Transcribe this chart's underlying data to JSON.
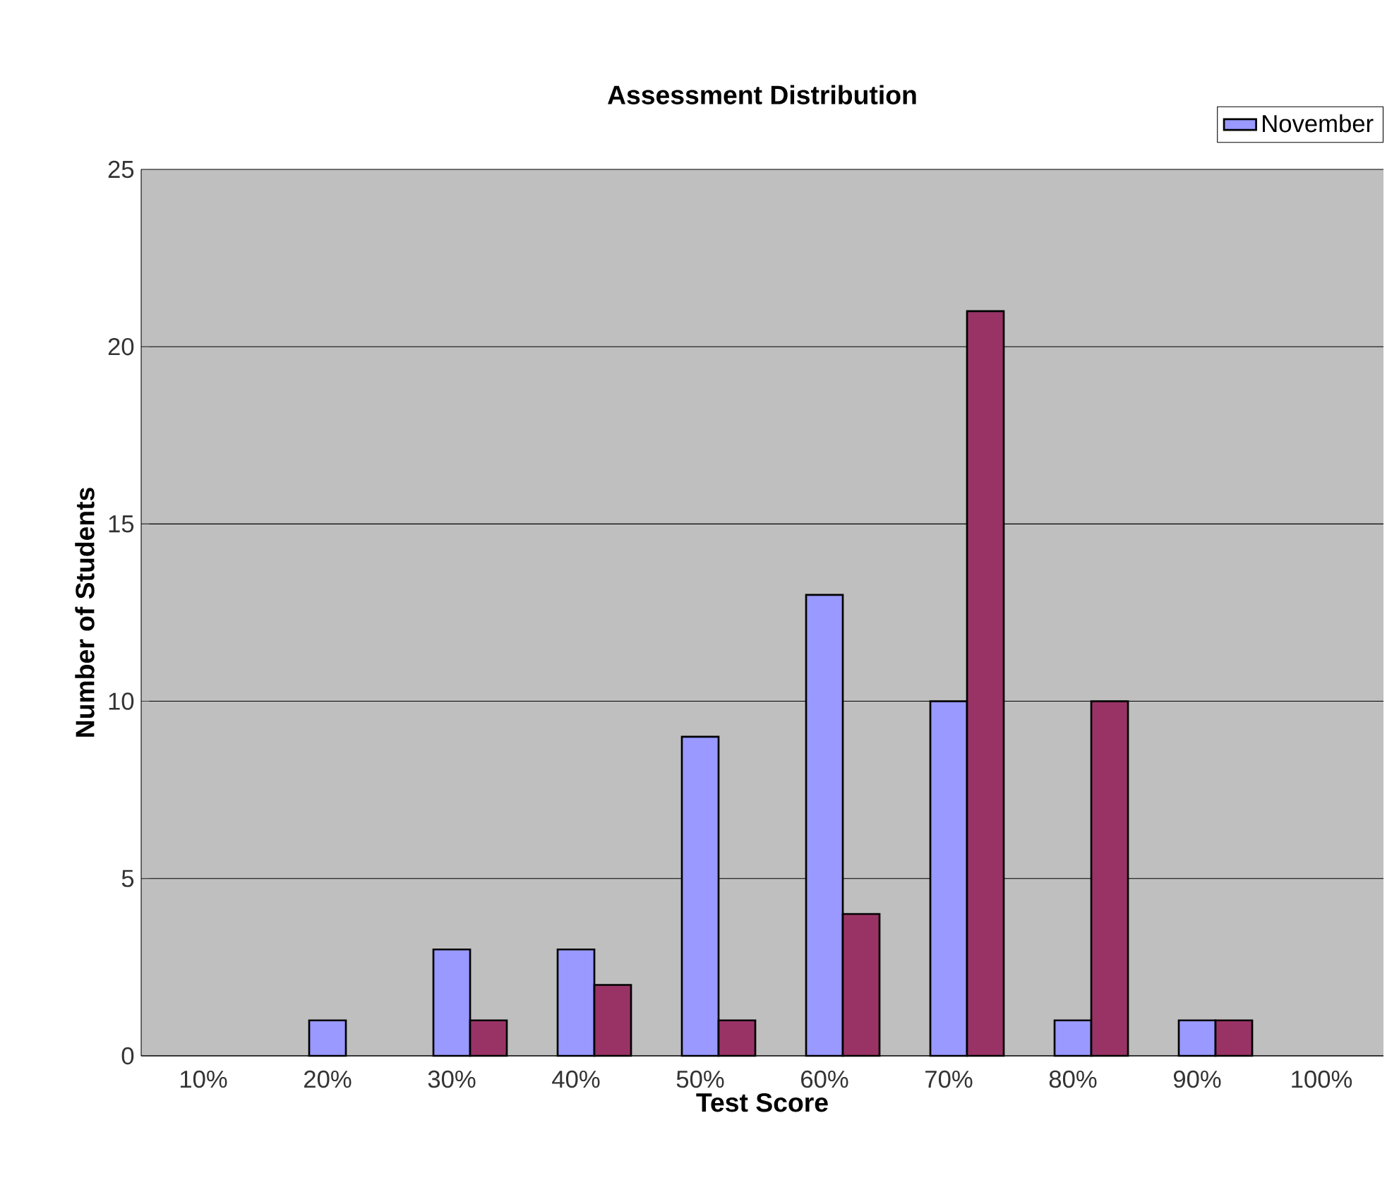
{
  "chart_data": {
    "type": "bar",
    "title": "Assessment Distribution",
    "xlabel": "Test Score",
    "ylabel": "Number of Students",
    "categories": [
      "10%",
      "20%",
      "30%",
      "40%",
      "50%",
      "60%",
      "70%",
      "80%",
      "90%",
      "100%"
    ],
    "series": [
      {
        "name": "November",
        "color": "#9999ff",
        "values": [
          null,
          1,
          3,
          3,
          9,
          13,
          10,
          1,
          1,
          null
        ]
      },
      {
        "color": "#993366",
        "values": [
          null,
          null,
          1,
          2,
          1,
          4,
          21,
          10,
          1,
          null
        ]
      }
    ],
    "ylim": [
      0,
      25
    ],
    "yticks": [
      0,
      5,
      10,
      15,
      20,
      25
    ],
    "grid": "y",
    "legend": "top right"
  }
}
